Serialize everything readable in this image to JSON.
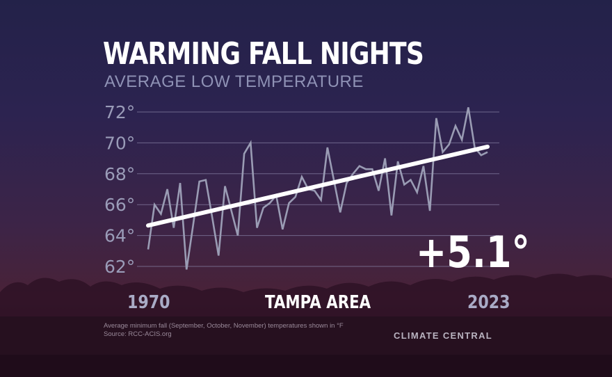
{
  "title": "WARMING FALL NIGHTS",
  "subtitle": "AVERAGE LOW TEMPERATURE",
  "location": "TAMPA AREA",
  "change_label": "+5.1°",
  "start_year_label": "1970",
  "end_year_label": "2023",
  "footnote": "Average minimum fall (September, October, November) temperatures shown in °F",
  "source": "Source: RCC-ACIS.org",
  "logo": "CLIMATE CENTRAL",
  "chart_data": {
    "type": "line",
    "title": "WARMING FALL NIGHTS",
    "subtitle": "AVERAGE LOW TEMPERATURE",
    "x_range": [
      1970,
      2023
    ],
    "ylim": [
      62,
      72
    ],
    "y_ticks": [
      "62°",
      "64°",
      "66°",
      "68°",
      "70°",
      "72°"
    ],
    "y_tick_values": [
      62,
      64,
      66,
      68,
      70,
      72
    ],
    "grid": true,
    "series": [
      {
        "values": [
          63.1,
          66.0,
          65.4,
          67.0,
          64.5,
          67.4,
          61.8,
          64.6,
          67.5,
          67.6,
          65.2,
          62.7,
          67.2,
          65.6,
          64.0,
          69.3,
          70.0,
          64.5,
          65.8,
          66.1,
          66.6,
          64.4,
          66.1,
          66.5,
          67.8,
          67.0,
          66.9,
          66.3,
          69.7,
          67.6,
          65.5,
          67.4,
          68.0,
          68.5,
          68.3,
          68.3,
          66.9,
          69.0,
          65.3,
          68.8,
          67.3,
          67.6,
          66.8,
          68.5,
          65.6,
          71.6,
          69.4,
          69.9,
          71.1,
          70.2,
          72.3,
          69.7,
          69.2,
          69.4
        ],
        "color": "#9a9cb4"
      }
    ],
    "trend": {
      "start": 64.65,
      "end": 69.75,
      "color": "#ffffff"
    },
    "annotation": "+5.1°"
  }
}
